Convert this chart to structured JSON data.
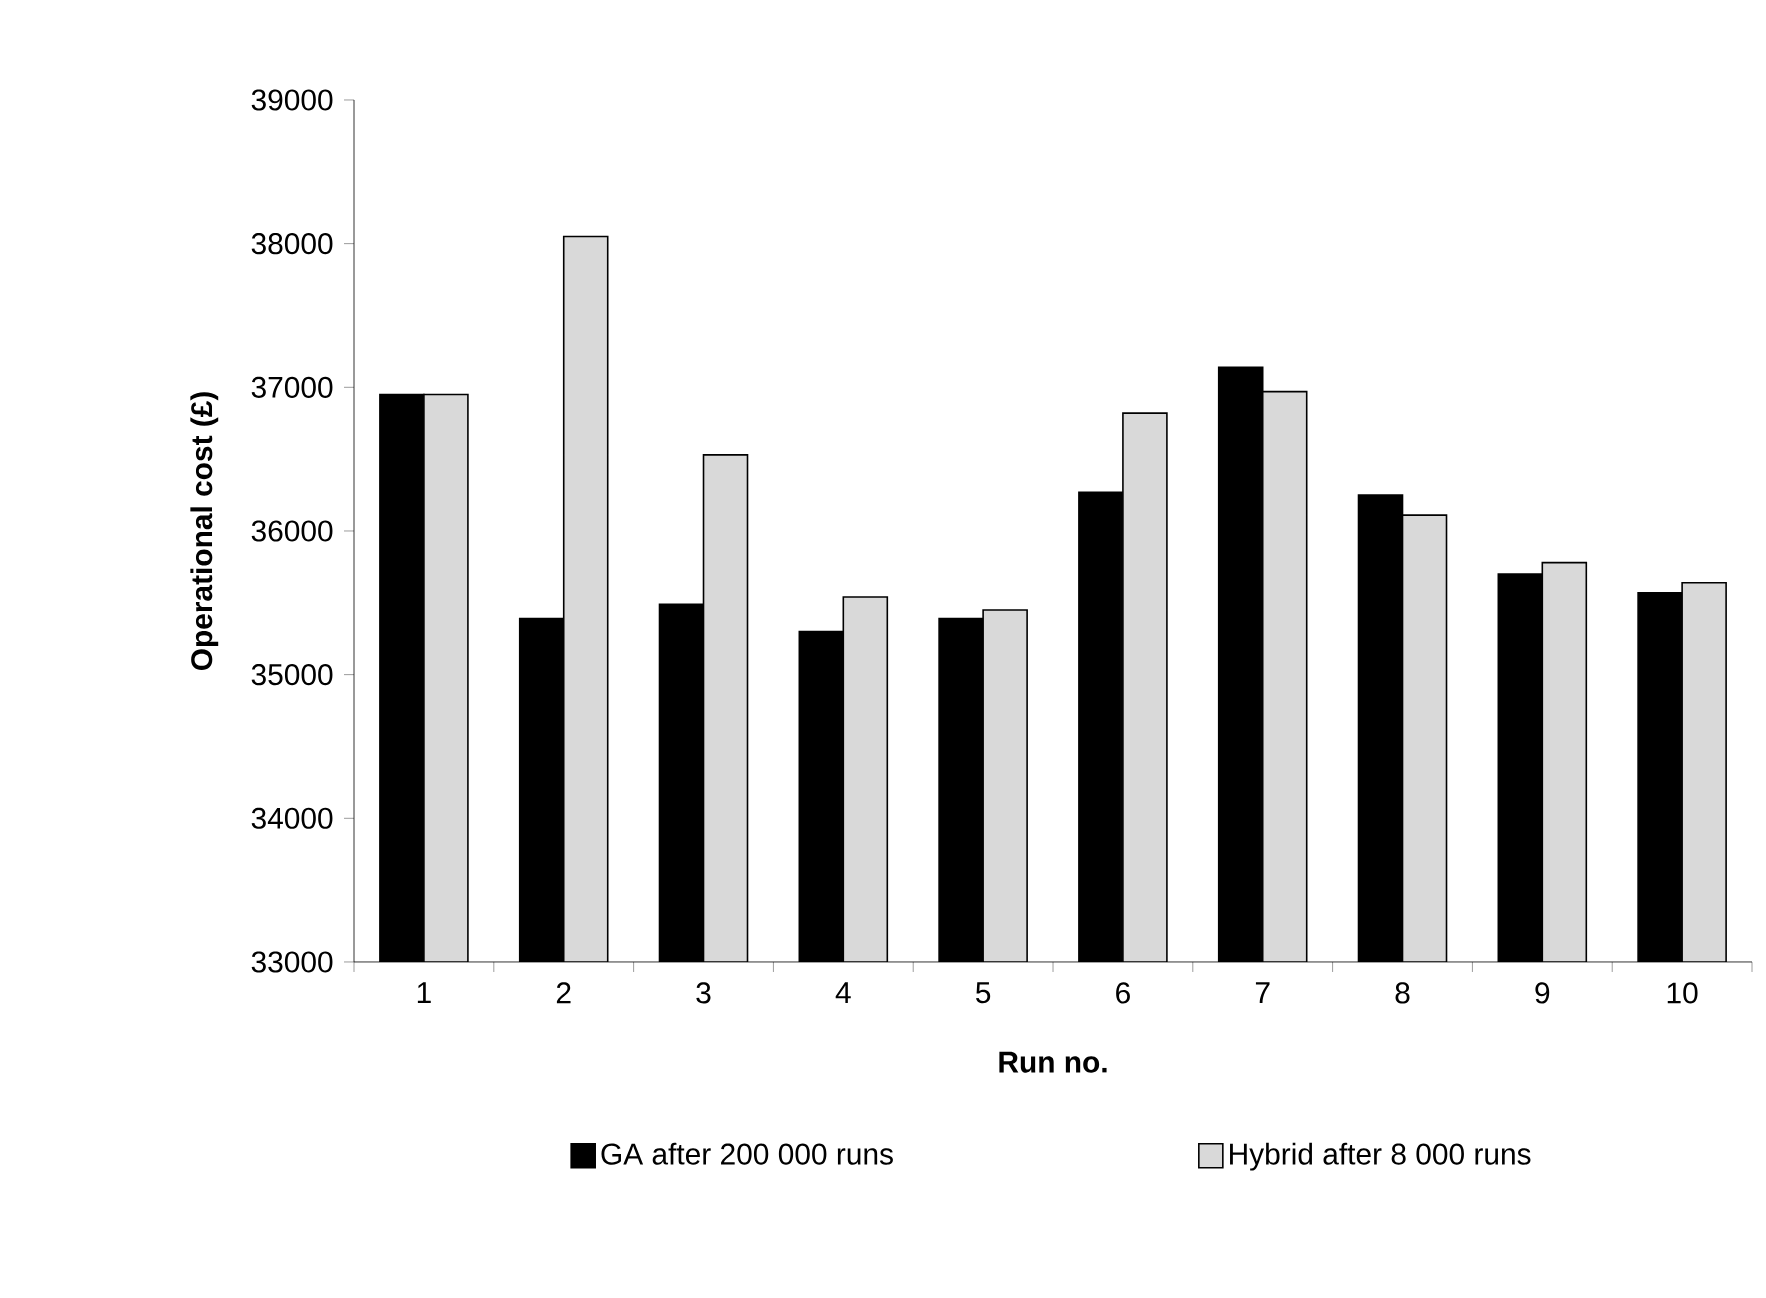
{
  "chart_data": {
    "type": "bar",
    "xlabel": "Run no.",
    "ylabel": "Operational cost (£)",
    "categories": [
      "1",
      "2",
      "3",
      "4",
      "5",
      "6",
      "7",
      "8",
      "9",
      "10"
    ],
    "series": [
      {
        "name": "GA after 200 000 runs",
        "color": "#000000",
        "values": [
          36950,
          35390,
          35490,
          35300,
          35390,
          36270,
          37140,
          36250,
          35700,
          35570
        ]
      },
      {
        "name": "Hybrid after 8 000 runs",
        "color": "#d9d9d9",
        "values": [
          36950,
          38050,
          36530,
          35540,
          35450,
          36820,
          36970,
          36110,
          35780,
          35640
        ]
      }
    ],
    "ylim": [
      33000,
      39000
    ],
    "yticks": [
      33000,
      34000,
      35000,
      36000,
      37000,
      38000,
      39000
    ],
    "legend": "bottom",
    "grid": false
  }
}
